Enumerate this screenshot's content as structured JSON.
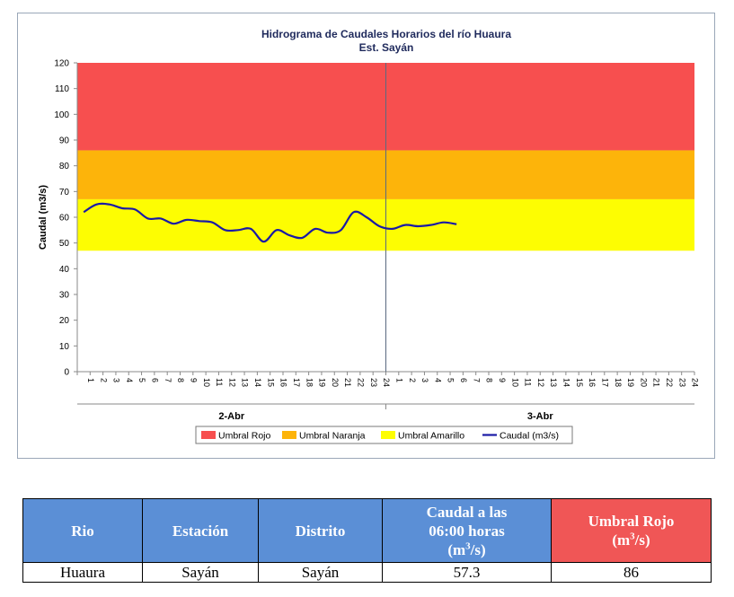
{
  "chart_data": {
    "type": "line",
    "title": "Hidrograma de Caudales Horarios del río Huaura",
    "subtitle": "Est. Sayán",
    "ylabel": "Caudal  (m3/s)",
    "ylim": [
      0,
      120
    ],
    "yticks": [
      0,
      10,
      20,
      30,
      40,
      50,
      60,
      70,
      80,
      90,
      100,
      110,
      120
    ],
    "hour_ticks": [
      "1",
      "2",
      "3",
      "4",
      "5",
      "6",
      "7",
      "8",
      "9",
      "10",
      "11",
      "12",
      "13",
      "14",
      "15",
      "16",
      "17",
      "18",
      "19",
      "20",
      "21",
      "22",
      "23",
      "24"
    ],
    "days": [
      "2-Abr",
      "3-Abr"
    ],
    "thresholds": [
      {
        "name": "Umbral Rojo",
        "from": 86,
        "to": 120,
        "color": "#f74f4f"
      },
      {
        "name": "Umbral Naranja",
        "from": 67,
        "to": 86,
        "color": "#fdb40a"
      },
      {
        "name": "Umbral Amarillo",
        "from": 47,
        "to": 67,
        "color": "#fdfd02"
      }
    ],
    "series": [
      {
        "name": "Caudal (m3/s)",
        "color": "#1a1aa6",
        "values": [
          62,
          65,
          65,
          63.5,
          63,
          59.5,
          59.5,
          57.5,
          59,
          58.5,
          58,
          55,
          55,
          55.5,
          50.5,
          55,
          53,
          52,
          55.5,
          54,
          55,
          62,
          60,
          56.5,
          55.5,
          57,
          56.5,
          57,
          58,
          57.3
        ]
      }
    ],
    "legend": [
      "Umbral Rojo",
      "Umbral Naranja",
      "Umbral Amarillo",
      "Caudal (m3/s)"
    ],
    "legend_position": "bottom",
    "grid": false
  },
  "table": {
    "headers": {
      "rio": "Rio",
      "estacion": "Estación",
      "distrito": "Distrito",
      "caudal_line1": "Caudal a las",
      "caudal_line2": "06:00 horas",
      "caudal_unit_pre": "(m",
      "caudal_unit_sup": "3",
      "caudal_unit_post": "/s)",
      "umbral_line1": "Umbral Rojo",
      "umbral_unit_pre": "(m",
      "umbral_unit_sup": "3",
      "umbral_unit_post": "/s)"
    },
    "row": {
      "rio": "Huaura",
      "estacion": "Sayán",
      "distrito": "Sayán",
      "caudal": "57.3",
      "umbral": "86"
    }
  }
}
